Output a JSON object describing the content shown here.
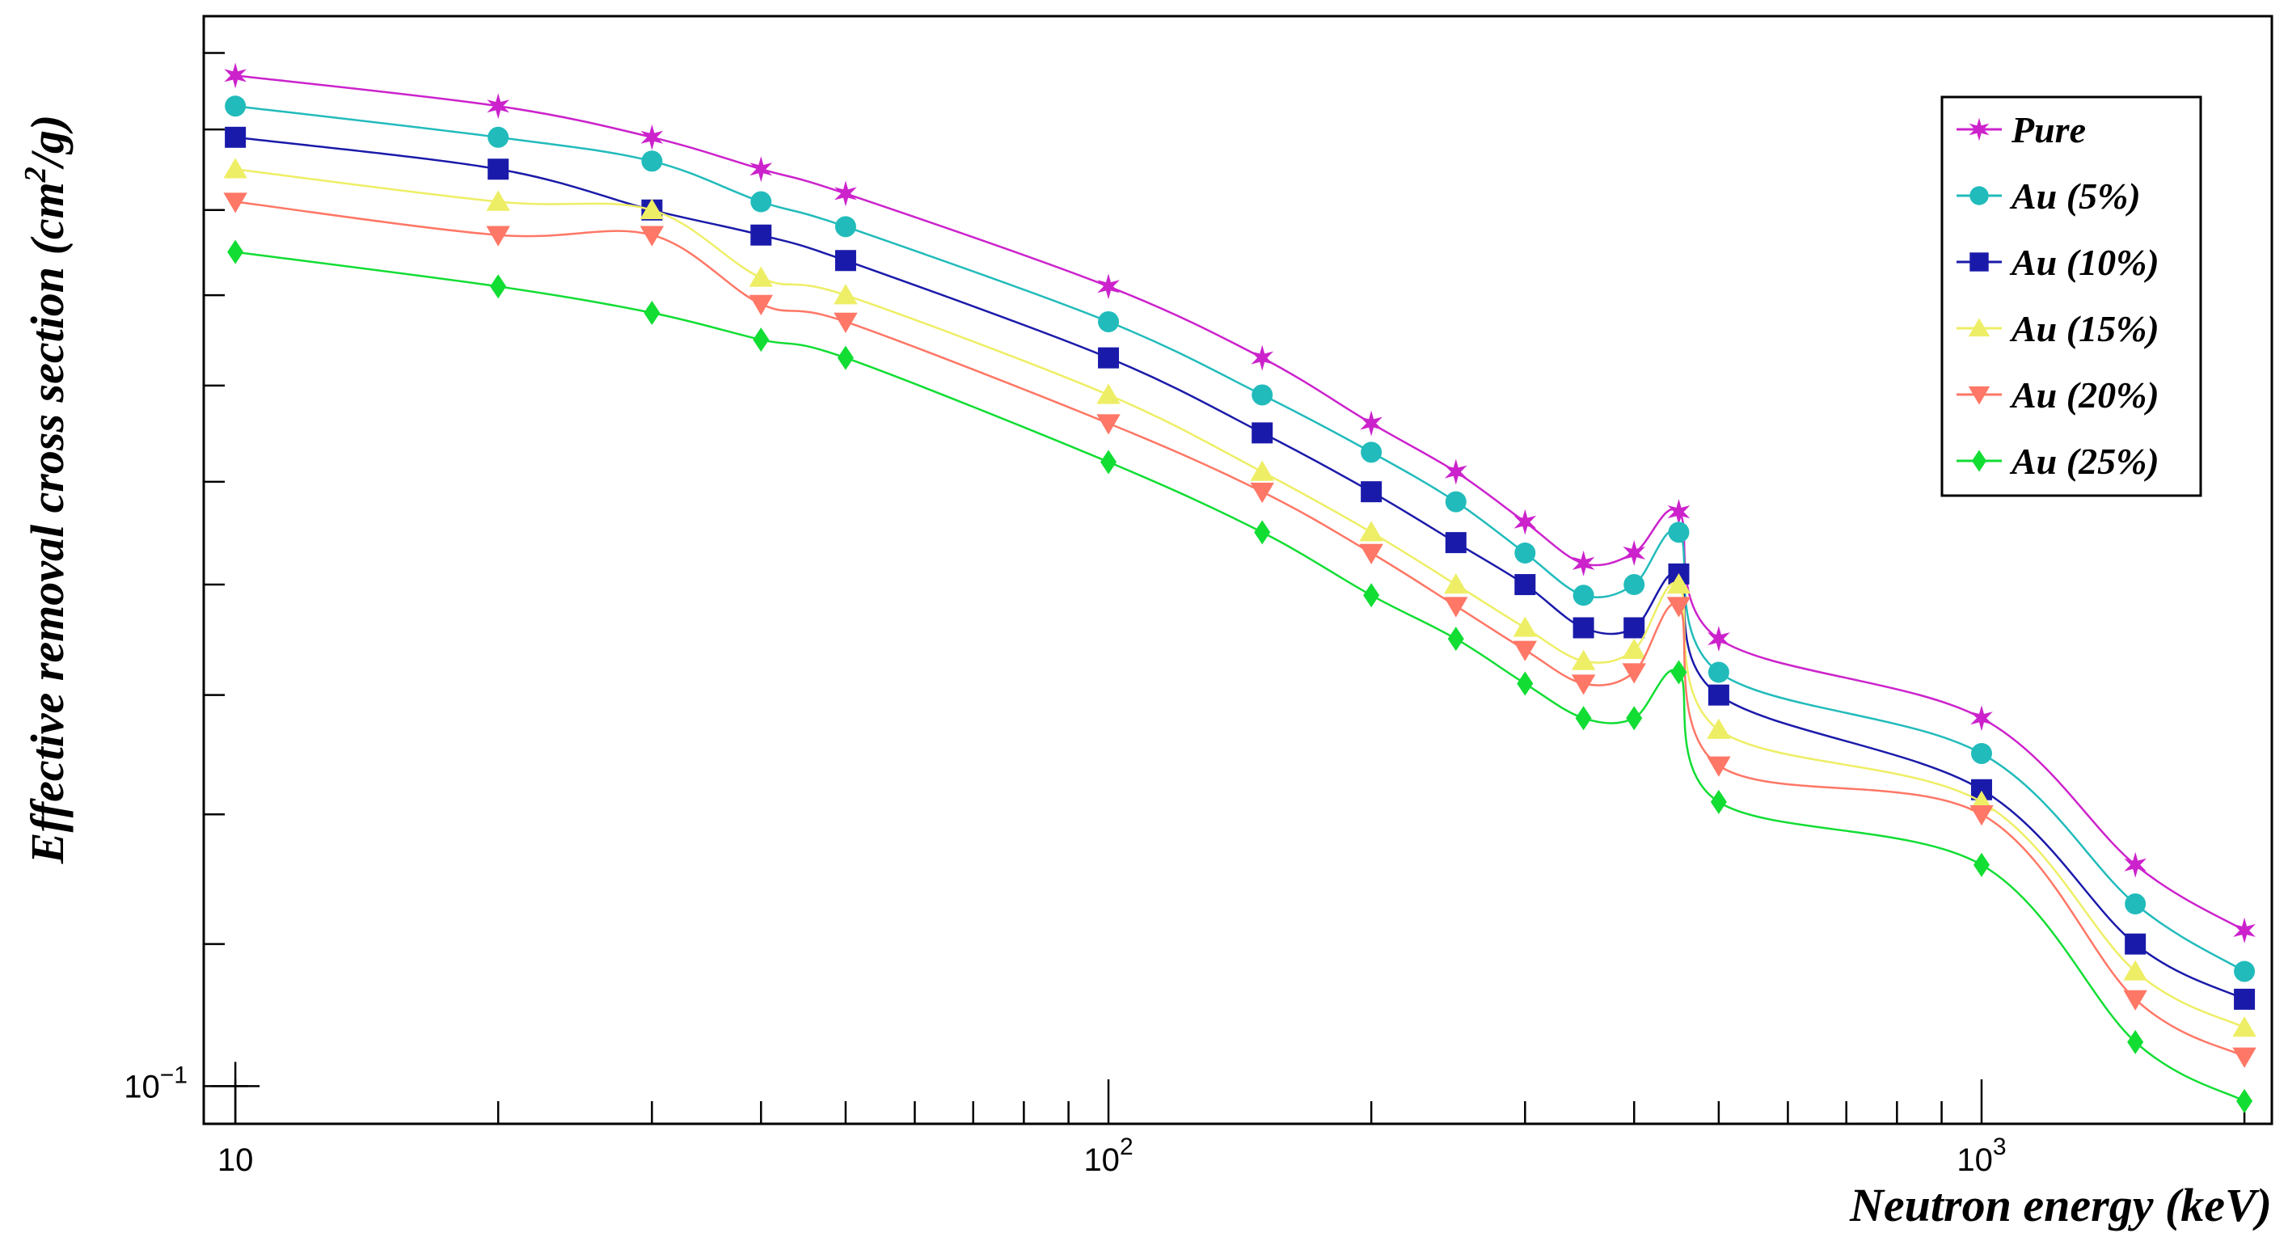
{
  "chart_data": {
    "type": "line",
    "xlabel": "Neutron energy (keV)",
    "ylabel": "Effective removal cross section (cm²/g)",
    "x_scale": "log",
    "y_scale": "log",
    "xlim": [
      9.2,
      2150
    ],
    "ylim": [
      0.0975,
      0.205
    ],
    "x_ticks": [
      {
        "value": 10,
        "base": "10",
        "exp": ""
      },
      {
        "value": 100,
        "base": "10",
        "exp": "2"
      },
      {
        "value": 1000,
        "base": "10",
        "exp": "3"
      }
    ],
    "y_ticks": [
      {
        "value": 0.1,
        "base": "10",
        "exp": "−1"
      }
    ],
    "grid": false,
    "legend_position": "top-right",
    "x": [
      10,
      20,
      30,
      40,
      50,
      100,
      150,
      200,
      250,
      300,
      350,
      400,
      450,
      500,
      1000,
      1500,
      2000
    ],
    "series": [
      {
        "name": "Pure",
        "color": "#cc22cc",
        "marker": "star",
        "values": [
          0.197,
          0.193,
          0.189,
          0.185,
          0.182,
          0.171,
          0.163,
          0.156,
          0.151,
          0.146,
          0.142,
          0.143,
          0.147,
          0.135,
          0.128,
          0.116,
          0.111
        ]
      },
      {
        "name": "Au (5%)",
        "color": "#22bbbb",
        "marker": "circle",
        "values": [
          0.193,
          0.189,
          0.186,
          0.181,
          0.178,
          0.167,
          0.159,
          0.153,
          0.148,
          0.143,
          0.139,
          0.14,
          0.145,
          0.132,
          0.125,
          0.113,
          0.108
        ]
      },
      {
        "name": "Au (10%)",
        "color": "#1a1aaa",
        "marker": "square",
        "values": [
          0.189,
          0.185,
          0.18,
          0.177,
          0.174,
          0.163,
          0.155,
          0.149,
          0.144,
          0.14,
          0.136,
          0.136,
          0.141,
          0.13,
          0.122,
          0.11,
          0.106
        ]
      },
      {
        "name": "Au (15%)",
        "color": "#eeee66",
        "marker": "triangle-up",
        "values": [
          0.185,
          0.181,
          0.18,
          0.172,
          0.17,
          0.159,
          0.151,
          0.145,
          0.14,
          0.136,
          0.133,
          0.134,
          0.14,
          0.127,
          0.121,
          0.108,
          0.104
        ]
      },
      {
        "name": "Au (20%)",
        "color": "#ff7766",
        "marker": "triangle-down",
        "values": [
          0.181,
          0.177,
          0.177,
          0.169,
          0.167,
          0.156,
          0.149,
          0.143,
          0.138,
          0.134,
          0.131,
          0.132,
          0.138,
          0.124,
          0.12,
          0.106,
          0.102
        ]
      },
      {
        "name": "Au (25%)",
        "color": "#11dd33",
        "marker": "diamond",
        "values": [
          0.175,
          0.171,
          0.168,
          0.165,
          0.163,
          0.152,
          0.145,
          0.139,
          0.135,
          0.131,
          0.128,
          0.128,
          0.132,
          0.121,
          0.116,
          0.103,
          0.099
        ]
      }
    ]
  }
}
